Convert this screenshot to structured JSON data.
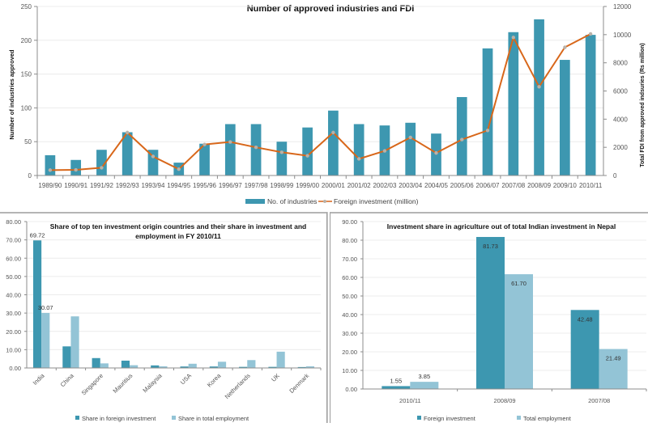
{
  "colors": {
    "bar_dark": "#3d97b0",
    "bar_light": "#93c4d6",
    "line": "#d8671a",
    "marker": "#b9b1a8",
    "grid": "#ececec",
    "axis": "#8c8c8c",
    "tick_text": "#555555"
  },
  "chart_data": [
    {
      "id": "industries-fdi",
      "type": "bar",
      "title": "Number of approved industries and FDI",
      "xlabel": "",
      "ylabel": "Number of industries approved",
      "y2label": "Total FDI from approved indsuries (Rs million)",
      "ylim": [
        0,
        250
      ],
      "yticks": [
        0,
        50,
        100,
        150,
        200,
        250
      ],
      "y2lim": [
        0,
        12000
      ],
      "y2ticks": [
        0,
        2000,
        4000,
        6000,
        8000,
        10000,
        12000
      ],
      "grid": true,
      "legend_position": "bottom",
      "categories": [
        "1989/90",
        "1990/91",
        "1991/92",
        "1992/93",
        "1993/94",
        "1994/95",
        "1995/96",
        "1996/97",
        "1997/98",
        "1998/99",
        "1999/00",
        "2000/01",
        "2001/02",
        "2002/03",
        "2003/04",
        "2004/05",
        "2005/06",
        "2006/07",
        "2007/08",
        "2008/09",
        "2009/10",
        "2010/11"
      ],
      "series": [
        {
          "name": "No. of industries",
          "type": "bar",
          "axis": "left",
          "values": [
            30,
            23,
            38,
            64,
            38,
            19,
            47,
            76,
            76,
            50,
            71,
            96,
            76,
            74,
            78,
            62,
            116,
            188,
            212,
            231,
            171,
            208
          ]
        },
        {
          "name": "Foreign investment (million)",
          "type": "line",
          "axis": "right",
          "values": [
            380,
            400,
            550,
            3050,
            1350,
            450,
            2200,
            2380,
            2000,
            1650,
            1400,
            3050,
            1180,
            1750,
            2700,
            1600,
            2550,
            3200,
            9800,
            6300,
            9100,
            10050
          ]
        }
      ]
    },
    {
      "id": "top-ten-countries",
      "type": "bar",
      "title": "Share of top ten investment origin countries and their share in investment and employment in FY 2010/11",
      "title_lines": [
        "Share of top ten investment origin countries and their share in investment and",
        "employment in FY 2010/11"
      ],
      "xlabel": "",
      "ylabel": "",
      "ylim": [
        0,
        80
      ],
      "yticks": [
        "0.00",
        "10.00",
        "20.00",
        "30.00",
        "40.00",
        "50.00",
        "60.00",
        "70.00",
        "80.00"
      ],
      "grid": true,
      "legend_position": "bottom",
      "categories": [
        "India",
        "China",
        "Singapore",
        "Mauritius",
        "Malaysia",
        "USA",
        "Korea",
        "Netherlands",
        "UK",
        "Denmark"
      ],
      "series": [
        {
          "name": "Share in foreign investment",
          "values": [
            69.72,
            11.8,
            5.4,
            4.0,
            1.4,
            0.8,
            0.8,
            0.6,
            0.6,
            0.5
          ]
        },
        {
          "name": "Share in total employment",
          "values": [
            30.07,
            28.2,
            2.5,
            1.5,
            0.9,
            2.3,
            3.4,
            4.3,
            8.9,
            0.9
          ]
        }
      ],
      "data_labels": [
        {
          "series": 0,
          "index": 0,
          "text": "69.72"
        },
        {
          "series": 1,
          "index": 0,
          "text": "30.07"
        }
      ]
    },
    {
      "id": "agri-share",
      "type": "bar",
      "title": "Investment share in agriculture  out of total Indian investment in Nepal",
      "xlabel": "",
      "ylabel": "",
      "ylim": [
        0,
        90
      ],
      "yticks": [
        "0.00",
        "10.00",
        "20.00",
        "30.00",
        "40.00",
        "50.00",
        "60.00",
        "70.00",
        "80.00",
        "90.00"
      ],
      "grid": true,
      "legend_position": "bottom",
      "categories": [
        "2010/11",
        "2008/09",
        "2007/08"
      ],
      "series": [
        {
          "name": "Foreign investment",
          "values": [
            1.55,
            81.73,
            42.48
          ]
        },
        {
          "name": "Total employment",
          "values": [
            3.85,
            61.7,
            21.49
          ]
        }
      ],
      "data_labels": [
        {
          "series": 0,
          "index": 0,
          "text": "1.55"
        },
        {
          "series": 1,
          "index": 0,
          "text": "3.85"
        },
        {
          "series": 0,
          "index": 1,
          "text": "81.73"
        },
        {
          "series": 1,
          "index": 1,
          "text": "61.70"
        },
        {
          "series": 0,
          "index": 2,
          "text": "42.48"
        },
        {
          "series": 1,
          "index": 2,
          "text": "21.49"
        }
      ]
    }
  ]
}
